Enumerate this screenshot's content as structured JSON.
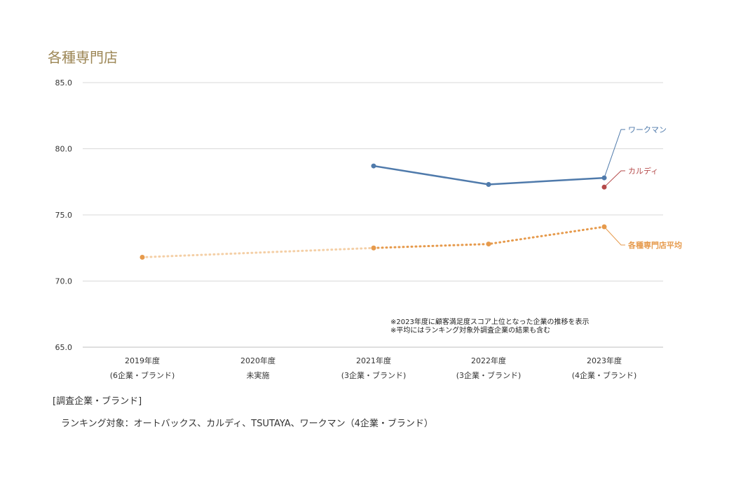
{
  "title": "各種専門店",
  "notes": [
    "※2023年度に顧客満足度スコア上位となった企業の推移を表示",
    "※平均にはランキング対象外調査企業の結果も含む"
  ],
  "section_label": "[調査企業・ブランド]",
  "ranking_targets": "ランキング対象：オートバックス、カルディ、TSUTAYA、ワークマン（4企業・ブランド）",
  "colors": {
    "workman": "#4f7aab",
    "kaldi": "#b54a4a",
    "average": "#e69a4c",
    "grid": "#d9d9d9",
    "title": "#9c8655"
  },
  "chart_data": {
    "type": "line",
    "categories": [
      "2019年度",
      "2020年度",
      "2021年度",
      "2022年度",
      "2023年度"
    ],
    "category_sublabels": [
      "(6企業・ブランド)",
      "未実施",
      "(3企業・ブランド)",
      "(3企業・ブランド)",
      "(4企業・ブランド)"
    ],
    "y_ticks": [
      "85.0",
      "80.0",
      "75.0",
      "70.0",
      "65.0"
    ],
    "ylim": [
      65,
      85
    ],
    "series": [
      {
        "name": "ワークマン",
        "style": "solid",
        "values": [
          null,
          null,
          78.7,
          77.3,
          77.8
        ]
      },
      {
        "name": "カルディ",
        "style": "point",
        "values": [
          null,
          null,
          null,
          null,
          77.1
        ]
      },
      {
        "name": "各種専門店平均",
        "style": "dotted",
        "values": [
          71.8,
          null,
          72.5,
          72.8,
          74.1
        ]
      }
    ]
  }
}
